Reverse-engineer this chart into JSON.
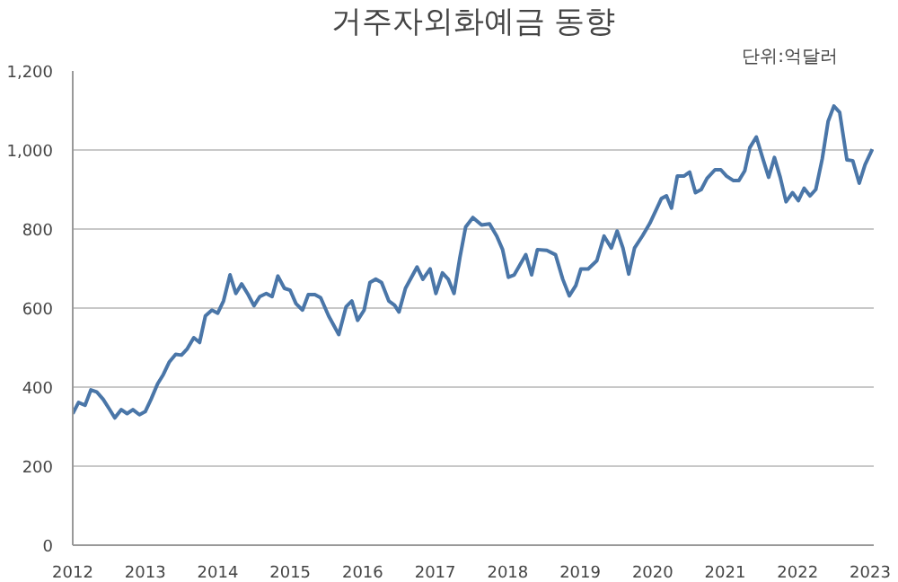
{
  "chart_data": {
    "type": "line",
    "title": "거주자외화예금 동향",
    "annotations": [
      "단위:억달러"
    ],
    "xlim": [
      2012,
      2023.05
    ],
    "xticks": [
      2012,
      2013,
      2014,
      2015,
      2016,
      2017,
      2018,
      2019,
      2020,
      2021,
      2022,
      2023
    ],
    "ylim": [
      0,
      1200
    ],
    "yticks": [
      0,
      200,
      400,
      600,
      800,
      {
        "value": 1000,
        "label": "1,000"
      },
      {
        "value": 1200,
        "label": "1,200"
      }
    ],
    "grid": "y",
    "marker": "none",
    "line_style": "solid",
    "series": [
      {
        "color": "#4a76a8",
        "x": [
          2012.0,
          2012.08,
          2012.17,
          2012.25,
          2012.33,
          2012.42,
          2012.5,
          2012.58,
          2012.67,
          2012.75,
          2012.83,
          2012.92,
          2013.0,
          2013.08,
          2013.17,
          2013.25,
          2013.33,
          2013.42,
          2013.5,
          2013.58,
          2013.67,
          2013.75,
          2013.83,
          2013.92,
          2014.0,
          2014.08,
          2014.17,
          2014.25,
          2014.33,
          2014.42,
          2014.5,
          2014.58,
          2014.67,
          2014.75,
          2014.83,
          2014.92,
          2015.0,
          2015.08,
          2015.17,
          2015.25,
          2015.34,
          2015.42,
          2015.53,
          2015.67,
          2015.77,
          2015.85,
          2015.93,
          2016.02,
          2016.1,
          2016.18,
          2016.26,
          2016.36,
          2016.44,
          2016.5,
          2016.59,
          2016.75,
          2016.83,
          2016.93,
          2017.01,
          2017.1,
          2017.18,
          2017.26,
          2017.34,
          2017.42,
          2017.52,
          2017.64,
          2017.75,
          2017.85,
          2017.93,
          2018.01,
          2018.09,
          2018.25,
          2018.33,
          2018.41,
          2018.54,
          2018.66,
          2018.76,
          2018.85,
          2018.94,
          2019.01,
          2019.11,
          2019.23,
          2019.33,
          2019.43,
          2019.51,
          2019.59,
          2019.67,
          2019.75,
          2019.86,
          2019.96,
          2020.06,
          2020.12,
          2020.19,
          2020.26,
          2020.34,
          2020.43,
          2020.51,
          2020.59,
          2020.67,
          2020.75,
          2020.86,
          2020.94,
          2021.02,
          2021.11,
          2021.19,
          2021.27,
          2021.34,
          2021.43,
          2021.52,
          2021.6,
          2021.68,
          2021.76,
          2021.84,
          2021.93,
          2022.01,
          2022.09,
          2022.17,
          2022.25,
          2022.34,
          2022.42,
          2022.5,
          2022.58,
          2022.68,
          2022.76,
          2022.85,
          2022.93,
          2023.03
        ],
        "values": [
          333,
          361,
          354,
          393,
          388,
          369,
          346,
          322,
          343,
          333,
          343,
          330,
          338,
          369,
          408,
          432,
          463,
          483,
          481,
          497,
          525,
          513,
          580,
          595,
          587,
          618,
          684,
          637,
          661,
          634,
          606,
          629,
          637,
          629,
          681,
          650,
          645,
          611,
          595,
          634,
          634,
          626,
          580,
          533,
          603,
          618,
          569,
          595,
          665,
          673,
          665,
          618,
          607,
          590,
          650,
          704,
          673,
          699,
          637,
          689,
          673,
          637,
          727,
          805,
          829,
          810,
          813,
          782,
          748,
          678,
          684,
          735,
          684,
          748,
          746,
          735,
          673,
          631,
          657,
          699,
          699,
          720,
          782,
          752,
          795,
          752,
          686,
          752,
          783,
          814,
          853,
          877,
          884,
          853,
          934,
          934,
          944,
          892,
          900,
          928,
          950,
          950,
          934,
          923,
          923,
          947,
          1006,
          1033,
          978,
          931,
          981,
          931,
          869,
          892,
          872,
          903,
          884,
          900,
          978,
          1072,
          1111,
          1095,
          975,
          973,
          916,
          963,
          1002
        ]
      }
    ]
  }
}
